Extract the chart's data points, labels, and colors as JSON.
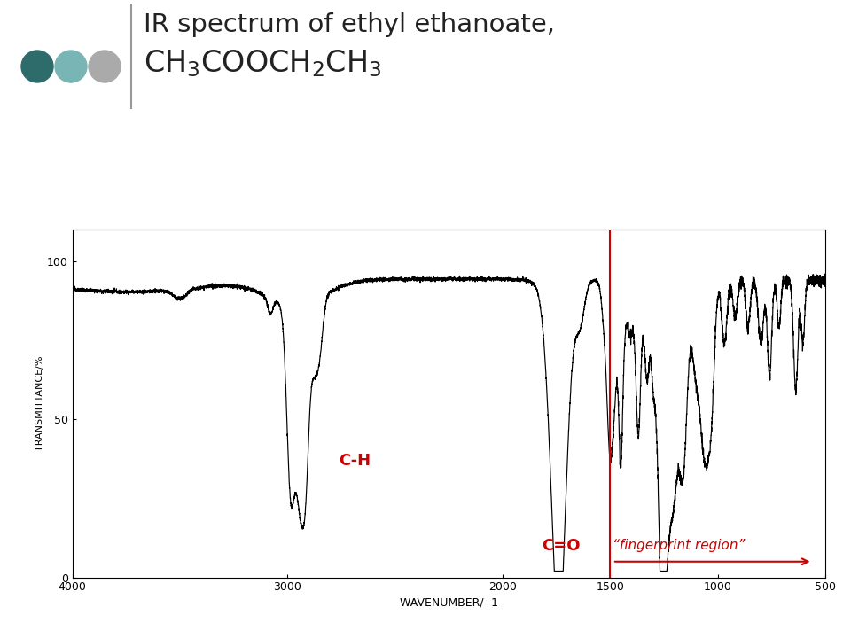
{
  "title_line1": "IR spectrum of ethyl ethanoate,",
  "xlabel": "WAVENUMBER/ -1",
  "ylabel": "TRANSMITTANCE/%",
  "xlim": [
    4000,
    500
  ],
  "ylim": [
    0,
    110
  ],
  "ytick_vals": [
    0,
    50,
    100
  ],
  "ytick_labels": [
    "0",
    "50",
    "100"
  ],
  "xtick_vals": [
    4000,
    3000,
    2000,
    1500,
    1000,
    500
  ],
  "xtick_labels": [
    "4000",
    "3000",
    "2000",
    "1500",
    "1000",
    "500"
  ],
  "fingerprint_line_x": 1500,
  "annotation_color": "#cc0000",
  "spectrum_color": "#000000",
  "background_color": "#ffffff",
  "dot1_color": "#2e6b6b",
  "dot2_color": "#7ab5b5",
  "dot3_color": "#aaaaaa"
}
